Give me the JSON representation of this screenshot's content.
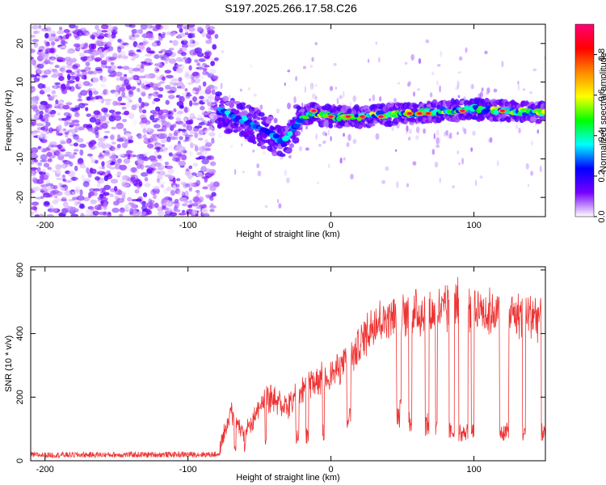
{
  "title": "S197.2025.266.17.58.C26",
  "chart_data": [
    {
      "type": "heatmap",
      "name": "spectrogram",
      "xlabel": "Height of straight line (km)",
      "ylabel": "Frequency (Hz)",
      "xlim": [
        -210,
        150
      ],
      "ylim": [
        -25,
        25
      ],
      "xticks": [
        -200,
        -100,
        0,
        100
      ],
      "yticks": [
        -20,
        -10,
        0,
        10,
        20
      ],
      "colorbar": {
        "label": "Normalized spectral amplitude",
        "range": [
          0.0,
          0.95
        ],
        "ticks": [
          0.0,
          0.2,
          0.4,
          0.6,
          0.8
        ],
        "tick_labels": [
          "0.0",
          "0.2",
          "0.4",
          "0.6",
          "0.8"
        ],
        "colors": [
          "#ffffff",
          "#7700ff",
          "#0000ff",
          "#00ffff",
          "#00ff00",
          "#ffff00",
          "#ff8800",
          "#ff0000",
          "#ff0077"
        ]
      },
      "noise_region": {
        "x_range": [
          -210,
          -80
        ],
        "amplitude": 0.15
      },
      "signal_ridge": [
        {
          "x": -80,
          "y": 3
        },
        {
          "x": -70,
          "y": 1
        },
        {
          "x": -60,
          "y": 0
        },
        {
          "x": -50,
          "y": -2
        },
        {
          "x": -40,
          "y": -4
        },
        {
          "x": -33,
          "y": -6
        },
        {
          "x": -27,
          "y": -2
        },
        {
          "x": -22,
          "y": 0
        },
        {
          "x": -15,
          "y": 2
        },
        {
          "x": 0,
          "y": 1
        },
        {
          "x": 20,
          "y": 1
        },
        {
          "x": 40,
          "y": 1.5
        },
        {
          "x": 60,
          "y": 2
        },
        {
          "x": 80,
          "y": 2.5
        },
        {
          "x": 100,
          "y": 3
        },
        {
          "x": 120,
          "y": 2.5
        },
        {
          "x": 150,
          "y": 2
        }
      ]
    },
    {
      "type": "line",
      "name": "snr",
      "xlabel": "Height of straight line (km)",
      "ylabel": "SNR (10 * v/v)",
      "xlim": [
        -210,
        150
      ],
      "ylim": [
        0,
        610
      ],
      "xticks": [
        -200,
        -100,
        0,
        100
      ],
      "yticks": [
        0,
        200,
        400,
        600
      ],
      "color": "#ee3333",
      "envelope": [
        {
          "x": -210,
          "base": 18,
          "peak": 30
        },
        {
          "x": -80,
          "base": 20,
          "peak": 35
        },
        {
          "x": -70,
          "base": 40,
          "peak": 200
        },
        {
          "x": -60,
          "base": 45,
          "peak": 120
        },
        {
          "x": -45,
          "base": 60,
          "peak": 250
        },
        {
          "x": -30,
          "base": 80,
          "peak": 220
        },
        {
          "x": -15,
          "base": 90,
          "peak": 310
        },
        {
          "x": 0,
          "base": 100,
          "peak": 330
        },
        {
          "x": 15,
          "base": 150,
          "peak": 400
        },
        {
          "x": 30,
          "base": 200,
          "peak": 520
        },
        {
          "x": 50,
          "base": 160,
          "peak": 540
        },
        {
          "x": 80,
          "base": 100,
          "peak": 560
        },
        {
          "x": 90,
          "base": 100,
          "peak": 600
        },
        {
          "x": 110,
          "base": 100,
          "peak": 555
        },
        {
          "x": 150,
          "base": 100,
          "peak": 540
        }
      ]
    }
  ]
}
